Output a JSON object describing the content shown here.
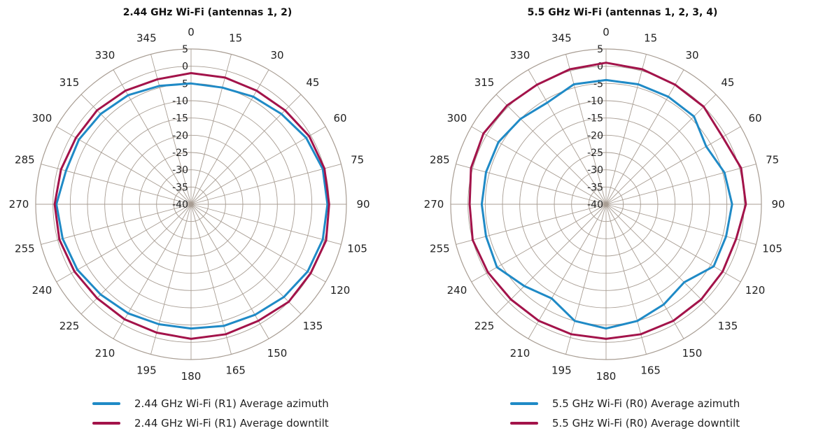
{
  "chart_data": [
    {
      "type": "polar-line",
      "title": "2.44 GHz Wi-Fi (antennas 1, 2)",
      "radial_axis": {
        "range": [
          -40,
          5
        ],
        "ticks": [
          "5",
          "0",
          "-5",
          "-10",
          "-15",
          "-20",
          "-25",
          "-30",
          "-35",
          "-40"
        ]
      },
      "angular_axis": {
        "ticks": [
          "0",
          "15",
          "30",
          "45",
          "60",
          "75",
          "90",
          "105",
          "120",
          "135",
          "150",
          "165",
          "180",
          "195",
          "210",
          "225",
          "240",
          "255",
          "270",
          "285",
          "300",
          "315",
          "330",
          "345"
        ]
      },
      "grid": true,
      "legend_position": "bottom",
      "series": [
        {
          "name": "2.44 GHz Wi-Fi (R1) Average azimuth",
          "color": "#1f8ac6",
          "angles": [
            0,
            15,
            30,
            45,
            60,
            75,
            90,
            105,
            120,
            135,
            150,
            165,
            180,
            195,
            210,
            225,
            240,
            255,
            270,
            285,
            300,
            315,
            330,
            345
          ],
          "values": [
            -5,
            -5,
            -4,
            -3,
            -1.5,
            -0.5,
            -0.5,
            -0.5,
            -1,
            -2,
            -3,
            -3.5,
            -4,
            -4,
            -3.5,
            -3,
            -2,
            -1.5,
            -1,
            -2.5,
            -2.5,
            -3,
            -3.5,
            -4.5
          ]
        },
        {
          "name": "2.44 GHz Wi-Fi (R1) Average downtilt",
          "color": "#a3134a",
          "angles": [
            0,
            15,
            30,
            45,
            60,
            75,
            90,
            105,
            120,
            135,
            150,
            165,
            180,
            195,
            210,
            225,
            240,
            255,
            270,
            285,
            300,
            315,
            330,
            345
          ],
          "values": [
            -2,
            -2,
            -2,
            -1.5,
            -0.5,
            0,
            0,
            0.5,
            0,
            0,
            -1,
            -1,
            -1,
            -1.5,
            -1.5,
            -1.5,
            -1,
            -0.5,
            -0.5,
            -1,
            -1.5,
            -1.5,
            -2,
            -2.5
          ]
        }
      ]
    },
    {
      "type": "polar-line",
      "title": "5.5 GHz Wi-Fi (antennas 1, 2, 3, 4)",
      "radial_axis": {
        "range": [
          -40,
          5
        ],
        "ticks": [
          "5",
          "0",
          "-5",
          "-10",
          "-15",
          "-20",
          "-25",
          "-30",
          "-35",
          "-40"
        ]
      },
      "angular_axis": {
        "ticks": [
          "0",
          "15",
          "30",
          "45",
          "60",
          "75",
          "90",
          "105",
          "120",
          "135",
          "150",
          "165",
          "180",
          "195",
          "210",
          "225",
          "240",
          "255",
          "270",
          "285",
          "300",
          "315",
          "330",
          "345"
        ]
      },
      "grid": true,
      "legend_position": "bottom",
      "series": [
        {
          "name": "5.5 GHz Wi-Fi (R0) Average azimuth",
          "color": "#1f8ac6",
          "angles": [
            0,
            15,
            30,
            45,
            60,
            75,
            90,
            105,
            120,
            135,
            150,
            165,
            180,
            195,
            210,
            225,
            240,
            255,
            270,
            285,
            300,
            315,
            330,
            345
          ],
          "values": [
            -4,
            -4,
            -4,
            -4,
            -6.5,
            -4.5,
            -3.5,
            -4,
            -4,
            -8,
            -6.5,
            -5,
            -4,
            -5,
            -8.5,
            -6.5,
            -3.5,
            -4,
            -4,
            -4,
            -4,
            -5,
            -6,
            -4
          ]
        },
        {
          "name": "5.5 GHz Wi-Fi (R0) Average downtilt",
          "color": "#a3134a",
          "angles": [
            0,
            15,
            30,
            45,
            60,
            75,
            90,
            105,
            120,
            135,
            150,
            165,
            180,
            195,
            210,
            225,
            240,
            255,
            270,
            285,
            300,
            315,
            330,
            345
          ],
          "values": [
            1,
            0.5,
            0,
            0,
            -1,
            0.5,
            0.5,
            -1,
            -1,
            -1,
            -1,
            -1,
            -1,
            -1,
            -1,
            -1,
            -0.5,
            0,
            -0.5,
            0.5,
            1,
            0.5,
            0,
            0.5
          ]
        }
      ]
    }
  ]
}
